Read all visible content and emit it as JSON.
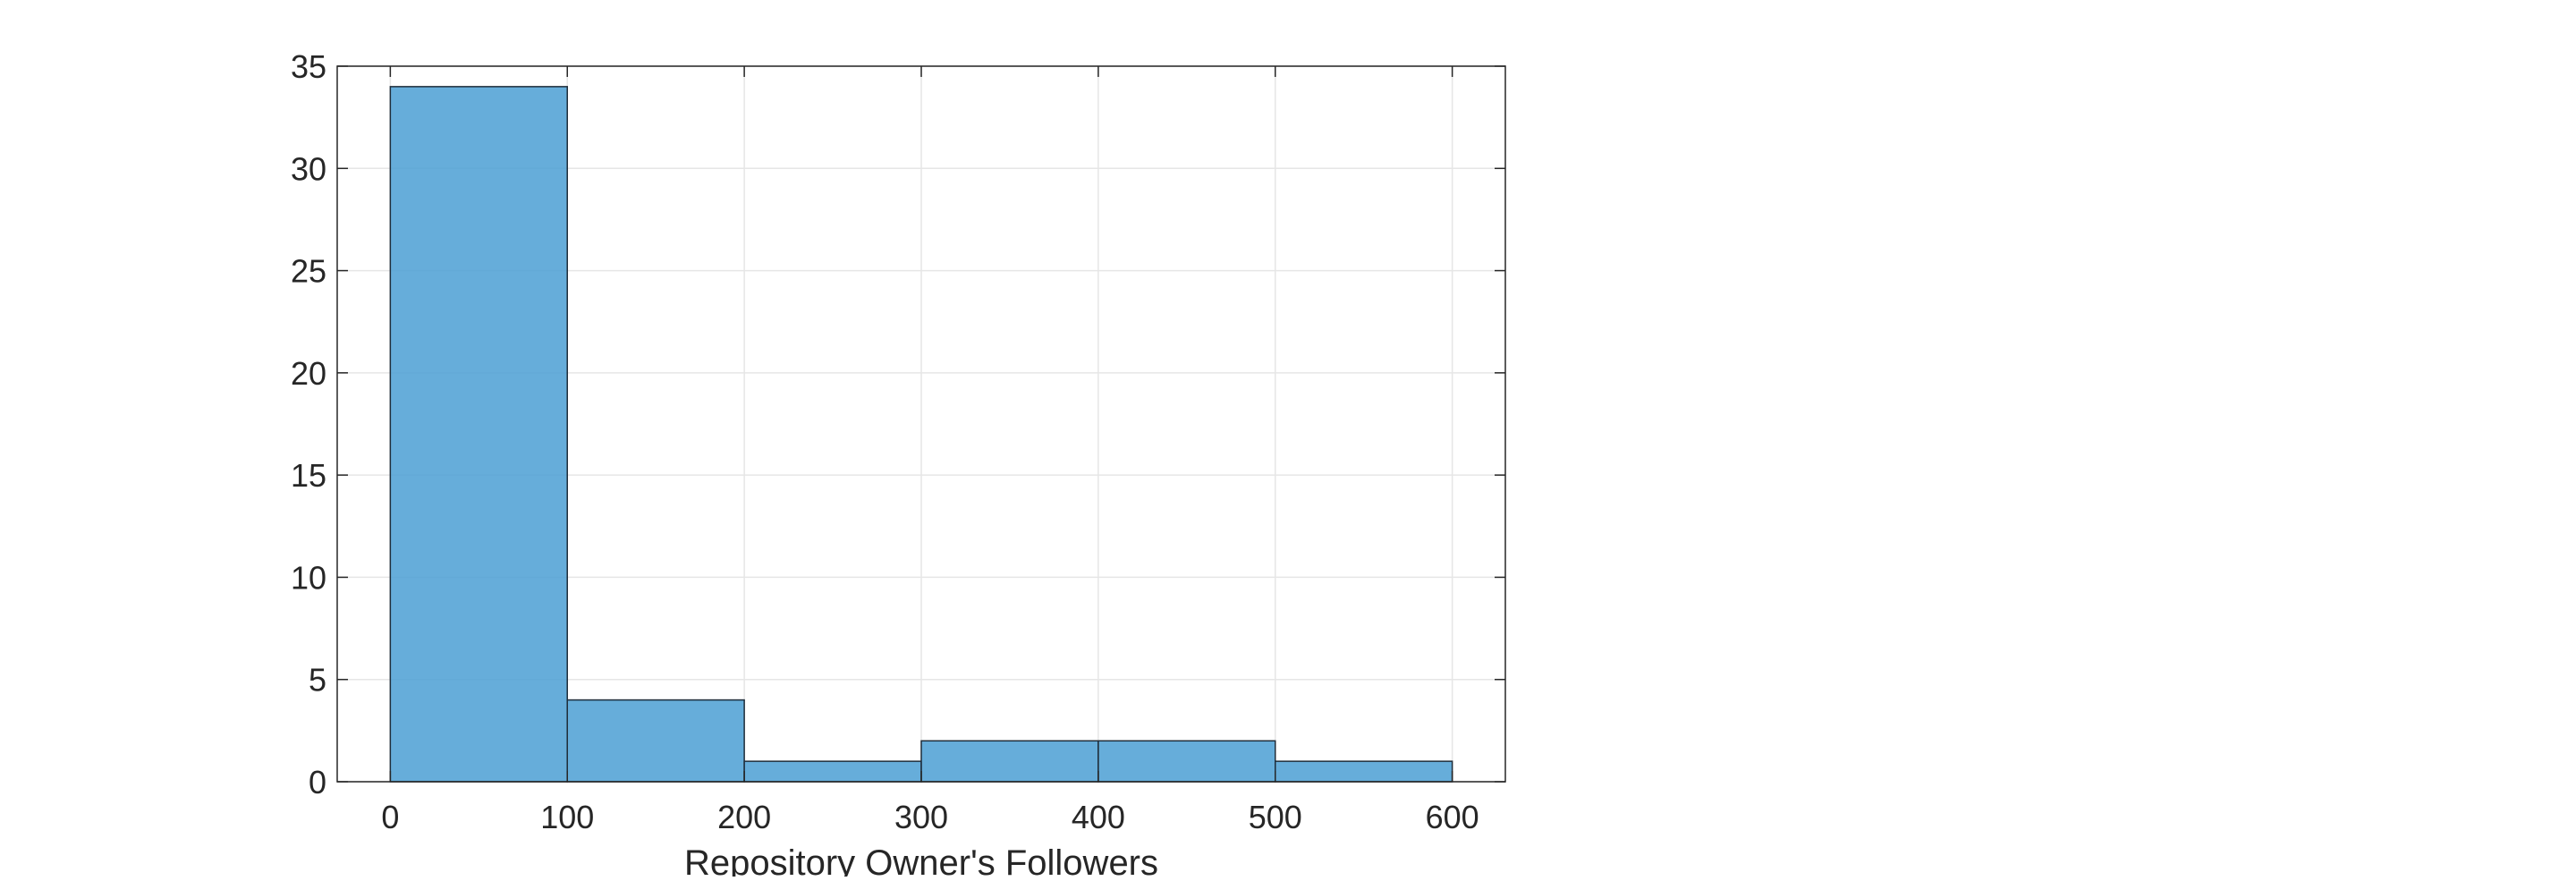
{
  "chart_data": {
    "type": "histogram",
    "title": "",
    "xlabel": "Repository Owner's Followers",
    "ylabel": "",
    "bin_edges": [
      0,
      100,
      200,
      300,
      400,
      500,
      600
    ],
    "values": [
      34,
      4,
      1,
      2,
      2,
      1
    ],
    "xlim": [
      -30,
      630
    ],
    "ylim": [
      0,
      35
    ],
    "xticks": [
      0,
      100,
      200,
      300,
      400,
      500,
      600
    ],
    "yticks": [
      0,
      5,
      10,
      15,
      20,
      25,
      30,
      35
    ],
    "xtick_labels": [
      "0",
      "100",
      "200",
      "300",
      "400",
      "500",
      "600"
    ],
    "ytick_labels": [
      "0",
      "5",
      "10",
      "15",
      "20",
      "25",
      "30",
      "35"
    ],
    "grid": true,
    "box": true,
    "colors": {
      "bar_fill": "#4d9fd4",
      "bar_edge": "#1f2d3a",
      "axis": "#262626",
      "grid": "#e6e6e6"
    }
  }
}
